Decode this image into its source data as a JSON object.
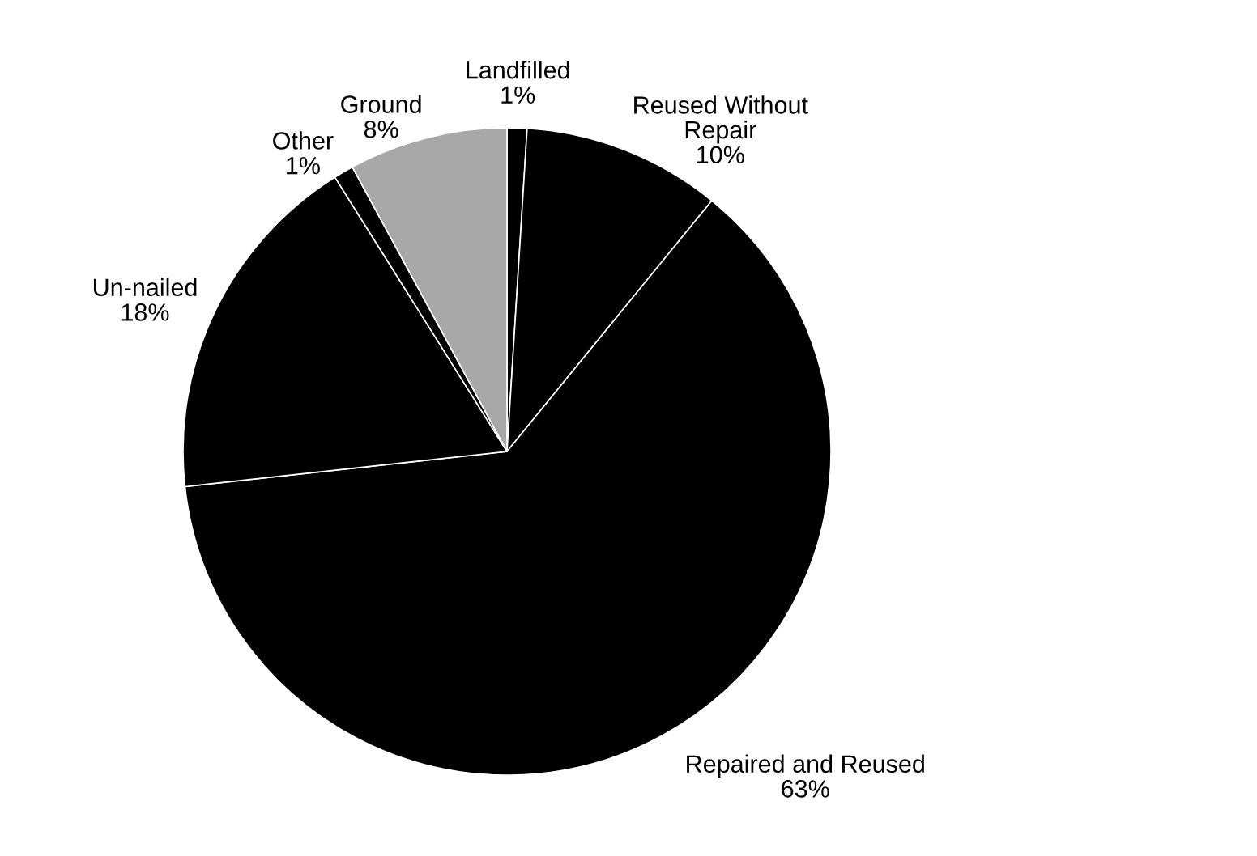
{
  "chart_data": {
    "type": "pie",
    "categories": [
      "Landfilled",
      "Reused Without\nRepair",
      "Repaired and Reused",
      "Un-nailed",
      "Other",
      "Ground"
    ],
    "values": [
      1,
      10,
      63,
      18,
      1,
      8
    ],
    "value_labels": [
      "1%",
      "10%",
      "63%",
      "18%",
      "1%",
      "8%"
    ],
    "colors": [
      "#000000",
      "#000000",
      "#000000",
      "#000000",
      "#000000",
      "#a8a8a8"
    ]
  }
}
